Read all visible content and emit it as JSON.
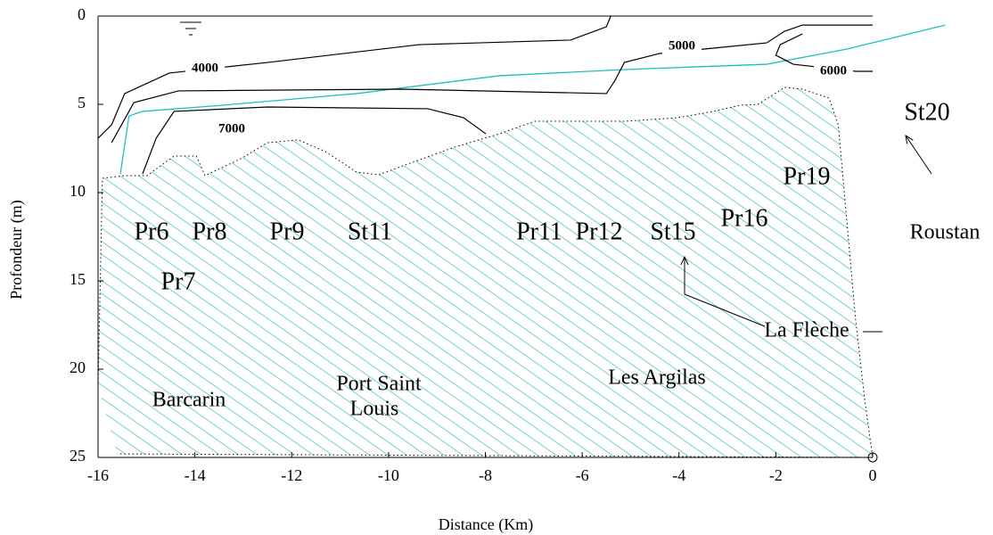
{
  "chart_data": {
    "type": "contour",
    "xlabel": "Distance (Km)",
    "ylabel": "Profondeur (m)",
    "xlim": [
      -16,
      0
    ],
    "ylim": [
      25,
      0
    ],
    "xticks": [
      -16,
      -14,
      -12,
      -10,
      -8,
      -6,
      -4,
      -2,
      0
    ],
    "yticks": [
      0,
      5,
      10,
      15,
      20,
      25
    ],
    "seabed": {
      "color": "#2ab7b7",
      "x": [
        -16,
        -15.91,
        -15.45,
        -14.99,
        -14.43,
        -13.97,
        -13.79,
        -13.05,
        -12.5,
        -11.86,
        -11.3,
        -10.66,
        -10.2,
        -9.55,
        -8.63,
        -7.71,
        -6.98,
        -5.13,
        -4.03,
        -3.29,
        -2.74,
        -2.37,
        -1.82,
        -1.45,
        -0.9,
        -0.71,
        -0.53,
        -0.35,
        -0.16,
        0,
        -15.6
      ],
      "y": [
        21,
        9.19,
        9.04,
        9.04,
        7.93,
        7.93,
        9.04,
        8.08,
        7.17,
        7.02,
        7.68,
        8.84,
        8.99,
        8.33,
        7.42,
        6.67,
        5.96,
        5.96,
        5.76,
        5.4,
        5.05,
        5.0,
        4.04,
        4.14,
        4.65,
        6.16,
        11.72,
        17.27,
        21.82,
        25,
        24.8
      ]
    },
    "water_line": {
      "color": "#1fbfbf",
      "x": [
        -15.54,
        -15.36,
        -15.08,
        -13.42,
        -10.66,
        -7.71,
        -5.13,
        -2.19,
        -0.53,
        1.5
      ],
      "y": [
        8.94,
        5.66,
        5.4,
        5.05,
        4.39,
        3.38,
        3.03,
        2.73,
        1.87,
        0.51
      ]
    },
    "contours": [
      {
        "level": 4000,
        "x": [
          -16,
          -15.72,
          -15.45,
          -14.53,
          -12.5,
          -9.37,
          -6.24,
          -5.5,
          -5.41
        ],
        "y": [
          6.92,
          6.16,
          4.39,
          3.23,
          2.63,
          1.62,
          1.36,
          0.61,
          0
        ]
      },
      {
        "level": 5000,
        "x": [
          -15.72,
          -15.26,
          -14.34,
          -9.74,
          -5.5,
          -5.32,
          -5.13,
          -4.4,
          -3.48,
          -2.19,
          -1.82,
          -1.45,
          0
        ],
        "y": [
          7.17,
          4.9,
          4.24,
          4.14,
          4.39,
          3.64,
          2.63,
          2.12,
          1.87,
          1.52,
          0.86,
          0.51,
          0.51
        ]
      },
      {
        "level": 6000,
        "x": [
          0,
          -0.35,
          -1.64,
          -2.0,
          -1.91,
          -1.45
        ],
        "y": [
          3.13,
          3.13,
          2.73,
          2.22,
          1.62,
          1.01
        ]
      },
      {
        "level": 7000,
        "x": [
          -15.08,
          -14.8,
          -14.43,
          -12.5,
          -9.19,
          -8.45,
          -7.99
        ],
        "y": [
          8.94,
          6.92,
          5.4,
          5.15,
          5.25,
          5.76,
          6.67
        ]
      }
    ],
    "annotations": [
      "Pr6",
      "Pr7",
      "Pr8",
      "Pr9",
      "St11",
      "Pr11",
      "Pr12",
      "St15",
      "Pr16",
      "Pr19",
      "St20",
      "Roustan",
      "La Flèche",
      "Barcarin",
      "Port Saint",
      "Louis",
      "Les Argilas"
    ]
  }
}
